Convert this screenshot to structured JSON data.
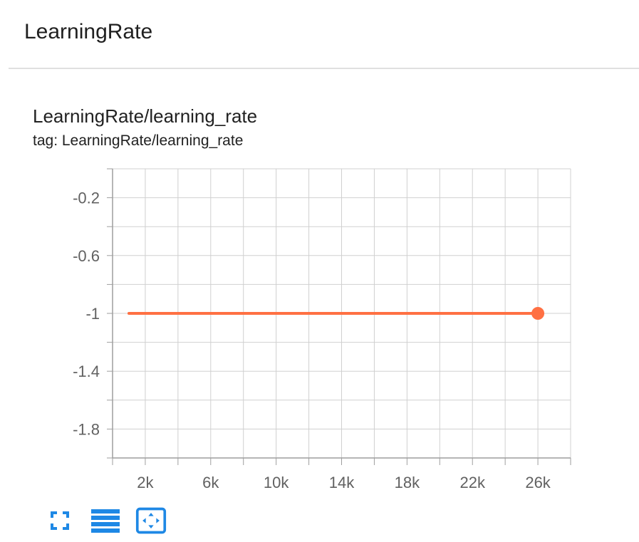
{
  "section": {
    "title": "LearningRate"
  },
  "card": {
    "title": "LearningRate/learning_rate",
    "tag": "tag: LearningRate/learning_rate"
  },
  "colors": {
    "series": "#ff7043",
    "grid": "#d0d0d0",
    "axis": "#9e9e9e",
    "tick_label": "#616161",
    "accent": "#1e88e5"
  },
  "toolbar": {
    "icons": [
      "fullscreen-icon",
      "data-table-icon",
      "fit-domain-icon"
    ]
  },
  "chart_data": {
    "type": "line",
    "title": "LearningRate/learning_rate",
    "xlabel": "",
    "ylabel": "",
    "xlim": [
      0,
      28000
    ],
    "ylim": [
      -2.0,
      0.0
    ],
    "x_ticks": [
      2000,
      6000,
      10000,
      14000,
      18000,
      22000,
      26000
    ],
    "x_tick_labels": [
      "2k",
      "6k",
      "10k",
      "14k",
      "18k",
      "22k",
      "26k"
    ],
    "y_ticks": [
      -0.2,
      -0.6,
      -1.0,
      -1.4,
      -1.8
    ],
    "y_tick_labels": [
      "-0.2",
      "-0.6",
      "-1",
      "-1.4",
      "-1.8"
    ],
    "grid": true,
    "series": [
      {
        "x": [
          1000,
          26000
        ],
        "y": [
          -1,
          -1
        ]
      }
    ]
  }
}
